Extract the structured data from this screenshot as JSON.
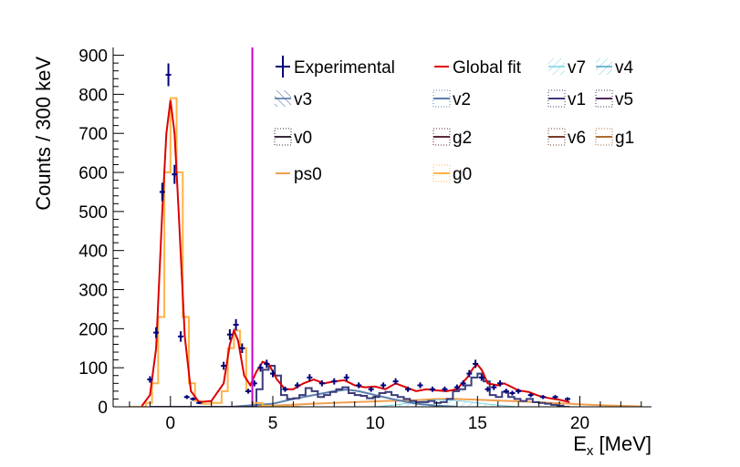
{
  "chart_data": {
    "type": "histogram",
    "xlabel_main": "E",
    "xlabel_sub": "x",
    "xlabel_unit": " [MeV]",
    "ylabel": "Counts / 300 keV",
    "xlim": [
      -2.8,
      23.5
    ],
    "ylim": [
      0,
      920
    ],
    "x_ticks": [
      0,
      5,
      10,
      15,
      20
    ],
    "y_ticks": [
      0,
      100,
      200,
      300,
      400,
      500,
      600,
      700,
      800,
      900
    ],
    "vertical_marker": {
      "x": 4.0,
      "color": "#cc00cc"
    },
    "colors": {
      "experimental": "#00007a",
      "global_fit": "#dd0000",
      "g0": "#ffb347",
      "ps0": "#f0a050",
      "v1": "#3b3b7a",
      "v2": "#5a7fae",
      "v3": "#4a6fa0",
      "v7": "#7ad0e0",
      "v4": "#4aa0c0",
      "v0": "#3a2a3a",
      "g2": "#5a2a3a",
      "v6": "#7a3a2a",
      "g1": "#b06a30",
      "v5": "#4a2a5a"
    },
    "experimental": {
      "x": [
        -1.0,
        -0.7,
        -0.4,
        -0.1,
        0.2,
        0.5,
        0.8,
        1.1,
        1.4,
        2.6,
        2.9,
        3.2,
        3.5,
        3.8,
        4.1,
        4.4,
        4.7,
        5.0,
        5.6,
        6.2,
        6.8,
        7.4,
        8.0,
        8.6,
        9.2,
        9.8,
        10.4,
        11.0,
        11.6,
        12.2,
        12.8,
        13.4,
        14.0,
        14.3,
        14.6,
        14.9,
        15.2,
        15.5,
        15.8,
        16.1,
        16.4,
        16.7,
        17.0,
        17.6,
        18.2,
        18.8,
        19.4
      ],
      "y": [
        70,
        190,
        550,
        850,
        595,
        180,
        25,
        20,
        10,
        105,
        185,
        210,
        150,
        40,
        60,
        100,
        110,
        85,
        45,
        55,
        75,
        60,
        65,
        75,
        55,
        45,
        55,
        65,
        45,
        55,
        45,
        45,
        50,
        60,
        85,
        110,
        75,
        45,
        50,
        60,
        40,
        35,
        40,
        30,
        25,
        25,
        20
      ]
    },
    "global_fit": {
      "x": [
        -1.4,
        -1.0,
        -0.7,
        -0.4,
        -0.2,
        0.0,
        0.2,
        0.4,
        0.7,
        1.0,
        1.4,
        2.0,
        2.6,
        2.9,
        3.1,
        3.3,
        3.6,
        3.9,
        4.2,
        4.5,
        4.8,
        5.2,
        5.6,
        6.0,
        6.5,
        7.0,
        7.5,
        8.0,
        8.5,
        9.0,
        9.5,
        10.0,
        10.5,
        11.0,
        11.5,
        12.0,
        12.5,
        13.0,
        13.5,
        14.0,
        14.5,
        14.8,
        15.0,
        15.2,
        15.5,
        16.0,
        16.3,
        16.7,
        17.0,
        17.5,
        18.0,
        18.5,
        19.0,
        19.5
      ],
      "y": [
        2,
        30,
        150,
        500,
        700,
        785,
        700,
        500,
        180,
        40,
        12,
        15,
        60,
        160,
        195,
        170,
        80,
        55,
        90,
        115,
        110,
        70,
        45,
        45,
        60,
        70,
        60,
        65,
        68,
        55,
        50,
        52,
        45,
        60,
        50,
        40,
        45,
        42,
        40,
        45,
        75,
        100,
        108,
        95,
        60,
        55,
        60,
        50,
        42,
        38,
        28,
        22,
        18,
        12
      ]
    },
    "g0": {
      "x": [
        -2.0,
        -1.2,
        -0.9,
        -0.6,
        -0.3,
        0.0,
        0.3,
        0.6,
        0.9,
        1.2,
        1.5,
        2.0,
        2.5,
        2.8,
        3.1,
        3.4,
        3.7,
        4.0,
        4.5,
        5.0,
        5.5,
        6.0
      ],
      "y": [
        0,
        10,
        60,
        230,
        600,
        790,
        600,
        230,
        60,
        15,
        8,
        10,
        40,
        150,
        195,
        150,
        40,
        10,
        3,
        0,
        0,
        0
      ]
    },
    "ps0": {
      "x": [
        3.0,
        5.0,
        7.0,
        9.0,
        10.5,
        12.0,
        13.0,
        14.0,
        15.0,
        17.0,
        19.0,
        21.0,
        23.0
      ],
      "y": [
        0,
        3,
        8,
        12,
        15,
        17,
        20,
        20,
        18,
        14,
        9,
        4,
        1
      ]
    },
    "v1": {
      "x": [
        -1.0,
        -0.6,
        -0.3,
        0.0,
        0.3,
        0.6,
        0.9,
        1.2,
        1.5,
        2.4,
        2.7,
        3.0,
        3.3,
        3.6,
        3.9,
        4.2,
        4.5,
        4.8,
        5.1,
        5.4,
        5.7,
        6.0,
        6.3,
        6.6,
        6.9,
        7.2,
        7.5,
        7.8,
        8.1,
        8.4,
        8.7,
        9.0,
        9.3,
        9.6,
        9.9,
        10.2,
        10.5,
        10.8,
        11.1,
        11.4,
        11.7,
        12.0,
        12.3,
        12.6,
        12.9,
        13.2,
        13.5,
        13.8,
        14.1,
        14.4,
        14.7,
        15.0,
        15.3,
        15.6,
        15.9,
        16.2,
        16.5,
        16.8,
        17.1,
        17.4,
        17.7,
        18.0,
        18.3,
        18.6,
        18.9,
        19.2
      ],
      "y": [
        0,
        0,
        0,
        0,
        0,
        0,
        0,
        0,
        0,
        0,
        0,
        0,
        0,
        0,
        0,
        45,
        95,
        105,
        80,
        30,
        20,
        22,
        30,
        48,
        40,
        25,
        30,
        38,
        45,
        50,
        35,
        30,
        28,
        22,
        25,
        35,
        38,
        30,
        25,
        20,
        15,
        12,
        12,
        15,
        10,
        12,
        20,
        40,
        45,
        55,
        75,
        85,
        65,
        30,
        25,
        38,
        25,
        20,
        15,
        20,
        12,
        10,
        8,
        5,
        3,
        0
      ]
    },
    "v2": {
      "x": [
        3.0,
        4.0,
        5.0,
        6.0,
        7.0,
        8.0,
        8.6,
        9.2,
        10.0,
        11.0,
        12.0,
        13.0,
        14.0
      ],
      "y": [
        0,
        4,
        8,
        20,
        30,
        40,
        44,
        40,
        30,
        18,
        8,
        3,
        0
      ]
    },
    "v7": {
      "x": [
        10.0,
        11.0,
        12.0,
        13.0,
        14.0,
        15.0,
        16.0,
        17.0
      ],
      "y": [
        0,
        5,
        12,
        18,
        16,
        10,
        4,
        0
      ]
    },
    "legend": [
      {
        "key": "experimental",
        "label": "Experimental",
        "style": "errorbar"
      },
      {
        "key": "global_fit",
        "label": "Global fit",
        "style": "line"
      },
      {
        "key": "v7",
        "label": "v7",
        "style": "hatch"
      },
      {
        "key": "v4",
        "label": "v4",
        "style": "hatch"
      },
      {
        "key": "v3",
        "label": "v3",
        "style": "hatch-fill"
      },
      {
        "key": "v2",
        "label": "v2",
        "style": "dotted-box"
      },
      {
        "key": "v1",
        "label": "v1",
        "style": "dotted-box"
      },
      {
        "key": "v5",
        "label": "v5",
        "style": "dotted-box"
      },
      {
        "key": "v0",
        "label": "v0",
        "style": "dotted-box"
      },
      {
        "key": "g2",
        "label": "g2",
        "style": "dotted-box"
      },
      {
        "key": "v6",
        "label": "v6",
        "style": "dotted-box"
      },
      {
        "key": "g1",
        "label": "g1",
        "style": "dotted-box"
      },
      {
        "key": "ps0",
        "label": "ps0",
        "style": "line-thin"
      },
      {
        "key": "g0",
        "label": "g0",
        "style": "dotted-box"
      }
    ]
  }
}
